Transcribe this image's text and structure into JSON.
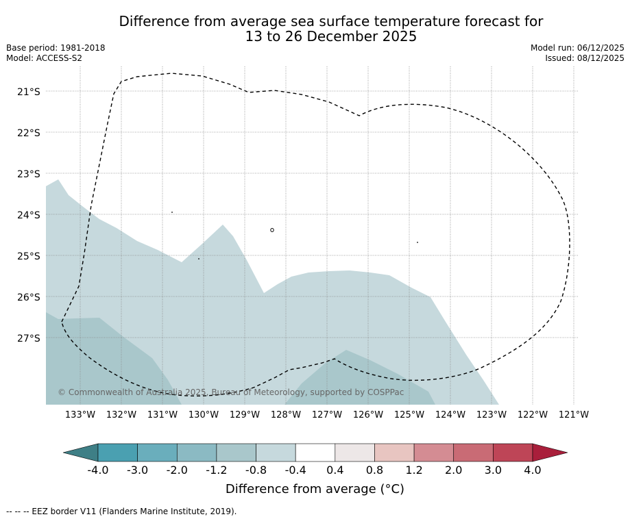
{
  "title": {
    "line1": "Difference from average sea surface temperature forecast for",
    "line2": "13 to 26 December 2025"
  },
  "meta_left": {
    "base_period": "Base period: 1981-2018",
    "model": "Model: ACCESS-S2"
  },
  "meta_right": {
    "model_run": "Model run: 06/12/2025",
    "issued": "Issued: 08/12/2025"
  },
  "map": {
    "lat_labels": [
      "21°S",
      "22°S",
      "23°S",
      "24°S",
      "25°S",
      "26°S",
      "27°S"
    ],
    "lon_labels": [
      "133°W",
      "132°W",
      "131°W",
      "130°W",
      "129°W",
      "128°W",
      "127°W",
      "126°W",
      "125°W",
      "124°W",
      "123°W",
      "122°W",
      "121°W"
    ],
    "copyright": "© Commonwealth of Australia 2025, Bureau of Meteorology, supported by COSPPac",
    "region_value_ranges": [
      "-0.8 to -0.4",
      "-1.2 to -0.8"
    ]
  },
  "colorbar": {
    "ticks": [
      "-4.0",
      "-3.0",
      "-2.0",
      "-1.2",
      "-0.8",
      "-0.4",
      "0.4",
      "0.8",
      "1.2",
      "2.0",
      "3.0",
      "4.0"
    ],
    "colors": [
      "#3e7f86",
      "#4aa0b1",
      "#6aaebc",
      "#8bbac3",
      "#a9c7cb",
      "#c6d9dd",
      "#ffffff",
      "#ede7e7",
      "#e8c5c1",
      "#d48c93",
      "#c96b75",
      "#be4557",
      "#a91f3b"
    ],
    "title": "Difference from average (°C)"
  },
  "footnote": "--  --  -- EEZ border V11 (Flanders Marine Institute, 2019)."
}
